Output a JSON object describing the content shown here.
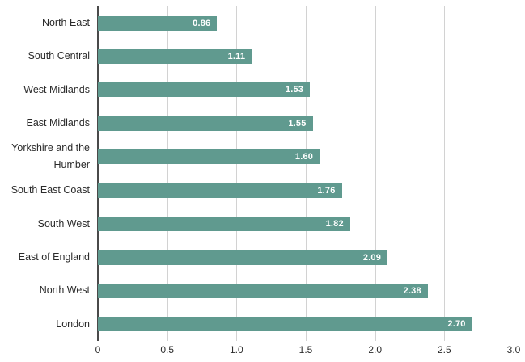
{
  "chart_data": {
    "type": "bar",
    "orientation": "horizontal",
    "title": "",
    "xlabel": "",
    "ylabel": "",
    "categories": [
      "North East",
      "South Central",
      "West Midlands",
      "East Midlands",
      "Yorkshire and the Humber",
      "South East Coast",
      "South West",
      "East of England",
      "North West",
      "London"
    ],
    "values": [
      0.86,
      1.11,
      1.53,
      1.55,
      1.6,
      1.76,
      1.82,
      2.09,
      2.38,
      2.7
    ],
    "value_labels": [
      "0.86",
      "1.11",
      "1.53",
      "1.55",
      "1.60",
      "1.76",
      "1.82",
      "2.09",
      "2.38",
      "2.70"
    ],
    "xlim": [
      0,
      3.0
    ],
    "x_ticks": [
      0,
      0.5,
      1.0,
      1.5,
      2.0,
      2.5,
      3.0
    ],
    "x_tick_labels": [
      "0",
      "0.5",
      "1.0",
      "1.5",
      "2.0",
      "2.5",
      "3.0"
    ],
    "grid": true,
    "legend": false,
    "colors": {
      "bar": "#609a8f",
      "gridline": "#d2d2d2",
      "zero_axis": "#4a4a4a",
      "category_text": "#2b2b2b",
      "tick_text": "#2b2b2b",
      "value_text": "#ffffff",
      "background": "#ffffff"
    }
  }
}
